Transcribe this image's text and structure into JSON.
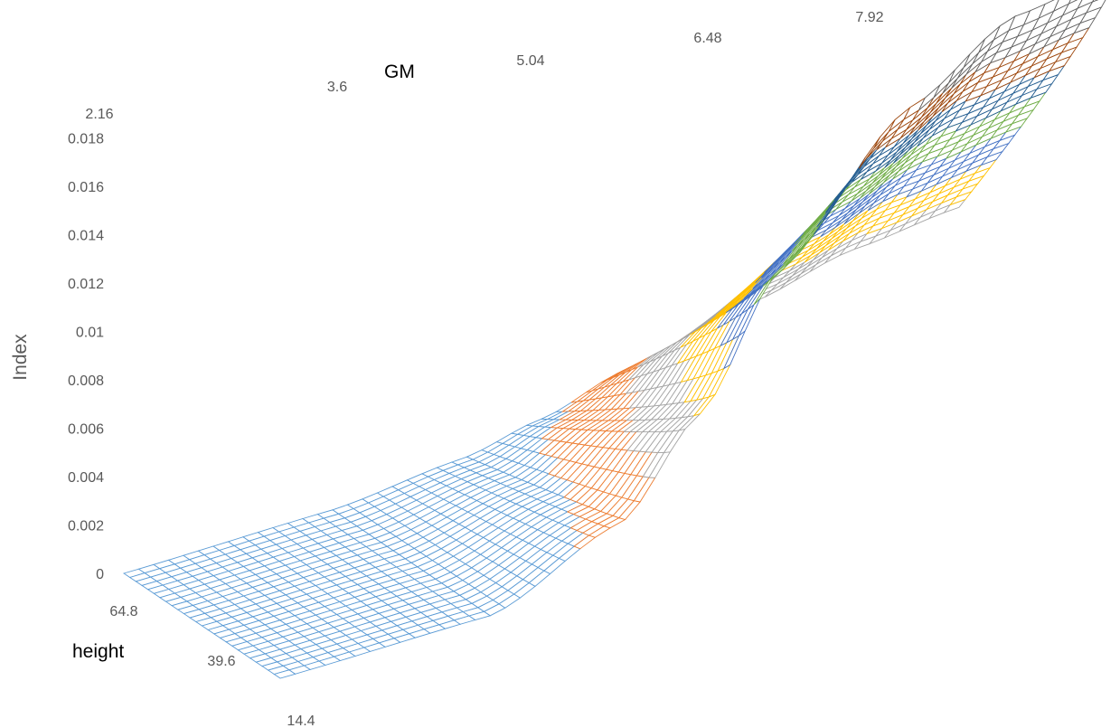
{
  "chart_data": {
    "type": "surface",
    "title": "",
    "axes": {
      "x": {
        "label": "GM",
        "ticks": [
          "2.16",
          "3.6",
          "5.04",
          "6.48",
          "7.92"
        ],
        "range": [
          2.16,
          7.92
        ]
      },
      "y": {
        "label": "height",
        "ticks": [
          "14.4",
          "39.6",
          "64.8"
        ],
        "range": [
          14.4,
          64.8
        ]
      },
      "z": {
        "label": "Index",
        "ticks": [
          "0",
          "0.002",
          "0.004",
          "0.006",
          "0.008",
          "0.01",
          "0.012",
          "0.014",
          "0.016",
          "0.018"
        ],
        "range": [
          0,
          0.0195
        ]
      }
    },
    "band_step": 0.002,
    "band_colors": [
      "#5B9BD5",
      "#ED7D31",
      "#A5A5A5",
      "#FFC000",
      "#4472C4",
      "#70AD47",
      "#255E91",
      "#9E480E",
      "#636363"
    ],
    "surface_profile": {
      "gm": [
        2.16,
        3.6,
        4.5,
        5.04,
        5.6,
        6.48,
        7.2,
        7.92
      ],
      "index_at_min_height": [
        0.0,
        0.0002,
        0.0025,
        0.006,
        0.011,
        0.016,
        0.0185,
        0.0192
      ],
      "index_at_max_height": [
        0.0,
        0.0002,
        0.0008,
        0.0015,
        0.0025,
        0.0038,
        0.0048,
        0.0053
      ]
    }
  }
}
